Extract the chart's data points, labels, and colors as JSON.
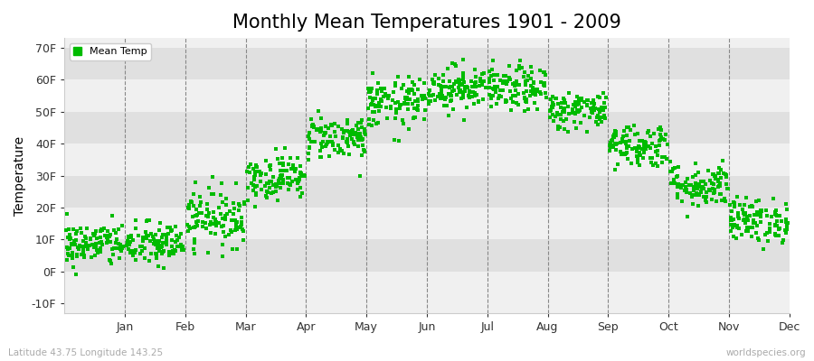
{
  "title": "Monthly Mean Temperatures 1901 - 2009",
  "ylabel": "Temperature",
  "xlabel_labels": [
    "Jan",
    "Feb",
    "Mar",
    "Apr",
    "May",
    "Jun",
    "Jul",
    "Aug",
    "Sep",
    "Oct",
    "Nov",
    "Dec"
  ],
  "ytick_labels": [
    "-10F",
    "0F",
    "10F",
    "20F",
    "30F",
    "40F",
    "50F",
    "60F",
    "70F"
  ],
  "ytick_values": [
    -10,
    0,
    10,
    20,
    30,
    40,
    50,
    60,
    70
  ],
  "ylim": [
    -13,
    73
  ],
  "dot_color": "#00bb00",
  "bg_color_light": "#f0f0f0",
  "bg_color_dark": "#e0e0e0",
  "legend_label": "Mean Temp",
  "subtitle_left": "Latitude 43.75 Longitude 143.25",
  "subtitle_right": "worldspecies.org",
  "title_fontsize": 15,
  "years": 109,
  "monthly_means": [
    8.5,
    8.5,
    17.0,
    29.5,
    42.0,
    52.5,
    57.5,
    57.0,
    50.5,
    39.5,
    27.0,
    16.0
  ],
  "monthly_stds": [
    3.5,
    3.5,
    4.5,
    3.5,
    3.5,
    4.0,
    3.5,
    3.5,
    3.0,
    3.5,
    3.5,
    3.5
  ]
}
